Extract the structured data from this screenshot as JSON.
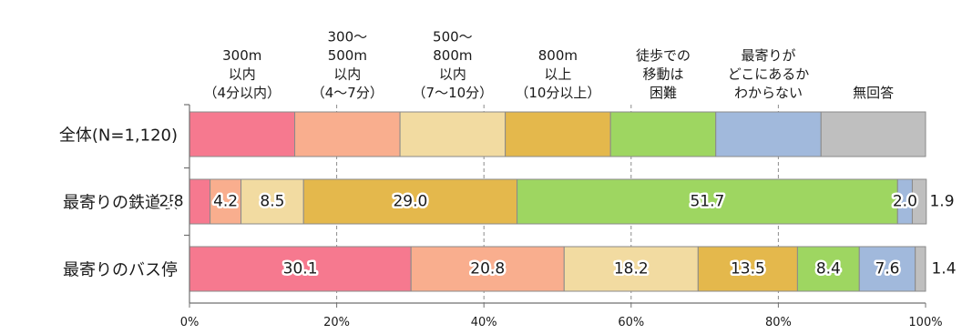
{
  "chart_data": {
    "type": "bar",
    "orientation": "horizontal",
    "stacked": true,
    "percent": true,
    "xlim": [
      0,
      100
    ],
    "x_ticks": [
      "0%",
      "20%",
      "40%",
      "60%",
      "80%",
      "100%"
    ],
    "legend_placement": "top",
    "legend": [
      [
        "300m",
        "以内",
        "（4分以内）"
      ],
      [
        "300～",
        "500m",
        "以内",
        "（4～7分）"
      ],
      [
        "500～",
        "800m",
        "以内",
        "（7～10分）"
      ],
      [
        "800m",
        "以上",
        "（10分以上）"
      ],
      [
        "徒歩での",
        "移動は",
        "困難"
      ],
      [
        "最寄りが",
        "どこにあるか",
        "わからない"
      ],
      [
        "無回答"
      ]
    ],
    "categories": [
      "全体(N=1,120)",
      "最寄りの鉄道駅",
      "最寄りのバス停"
    ],
    "values": [
      [
        14.3,
        14.3,
        14.3,
        14.3,
        14.3,
        14.3,
        14.2
      ],
      [
        2.8,
        4.2,
        8.5,
        29.0,
        51.7,
        2.0,
        1.9
      ],
      [
        30.1,
        20.8,
        18.2,
        13.5,
        8.4,
        7.6,
        1.4
      ]
    ],
    "labels": [
      [
        "",
        "",
        "",
        "",
        "",
        "",
        ""
      ],
      [
        "2.8",
        "4.2",
        "8.5",
        "29.0",
        "51.7",
        "2.0",
        "1.9"
      ],
      [
        "30.1",
        "20.8",
        "18.2",
        "13.5",
        "8.4",
        "7.6",
        "1.4"
      ]
    ],
    "colors": [
      "#f6798f",
      "#f9ae8e",
      "#f2dba1",
      "#e4b84c",
      "#9ed661",
      "#a1b9dc",
      "#bfbfbf"
    ],
    "grid": true
  }
}
